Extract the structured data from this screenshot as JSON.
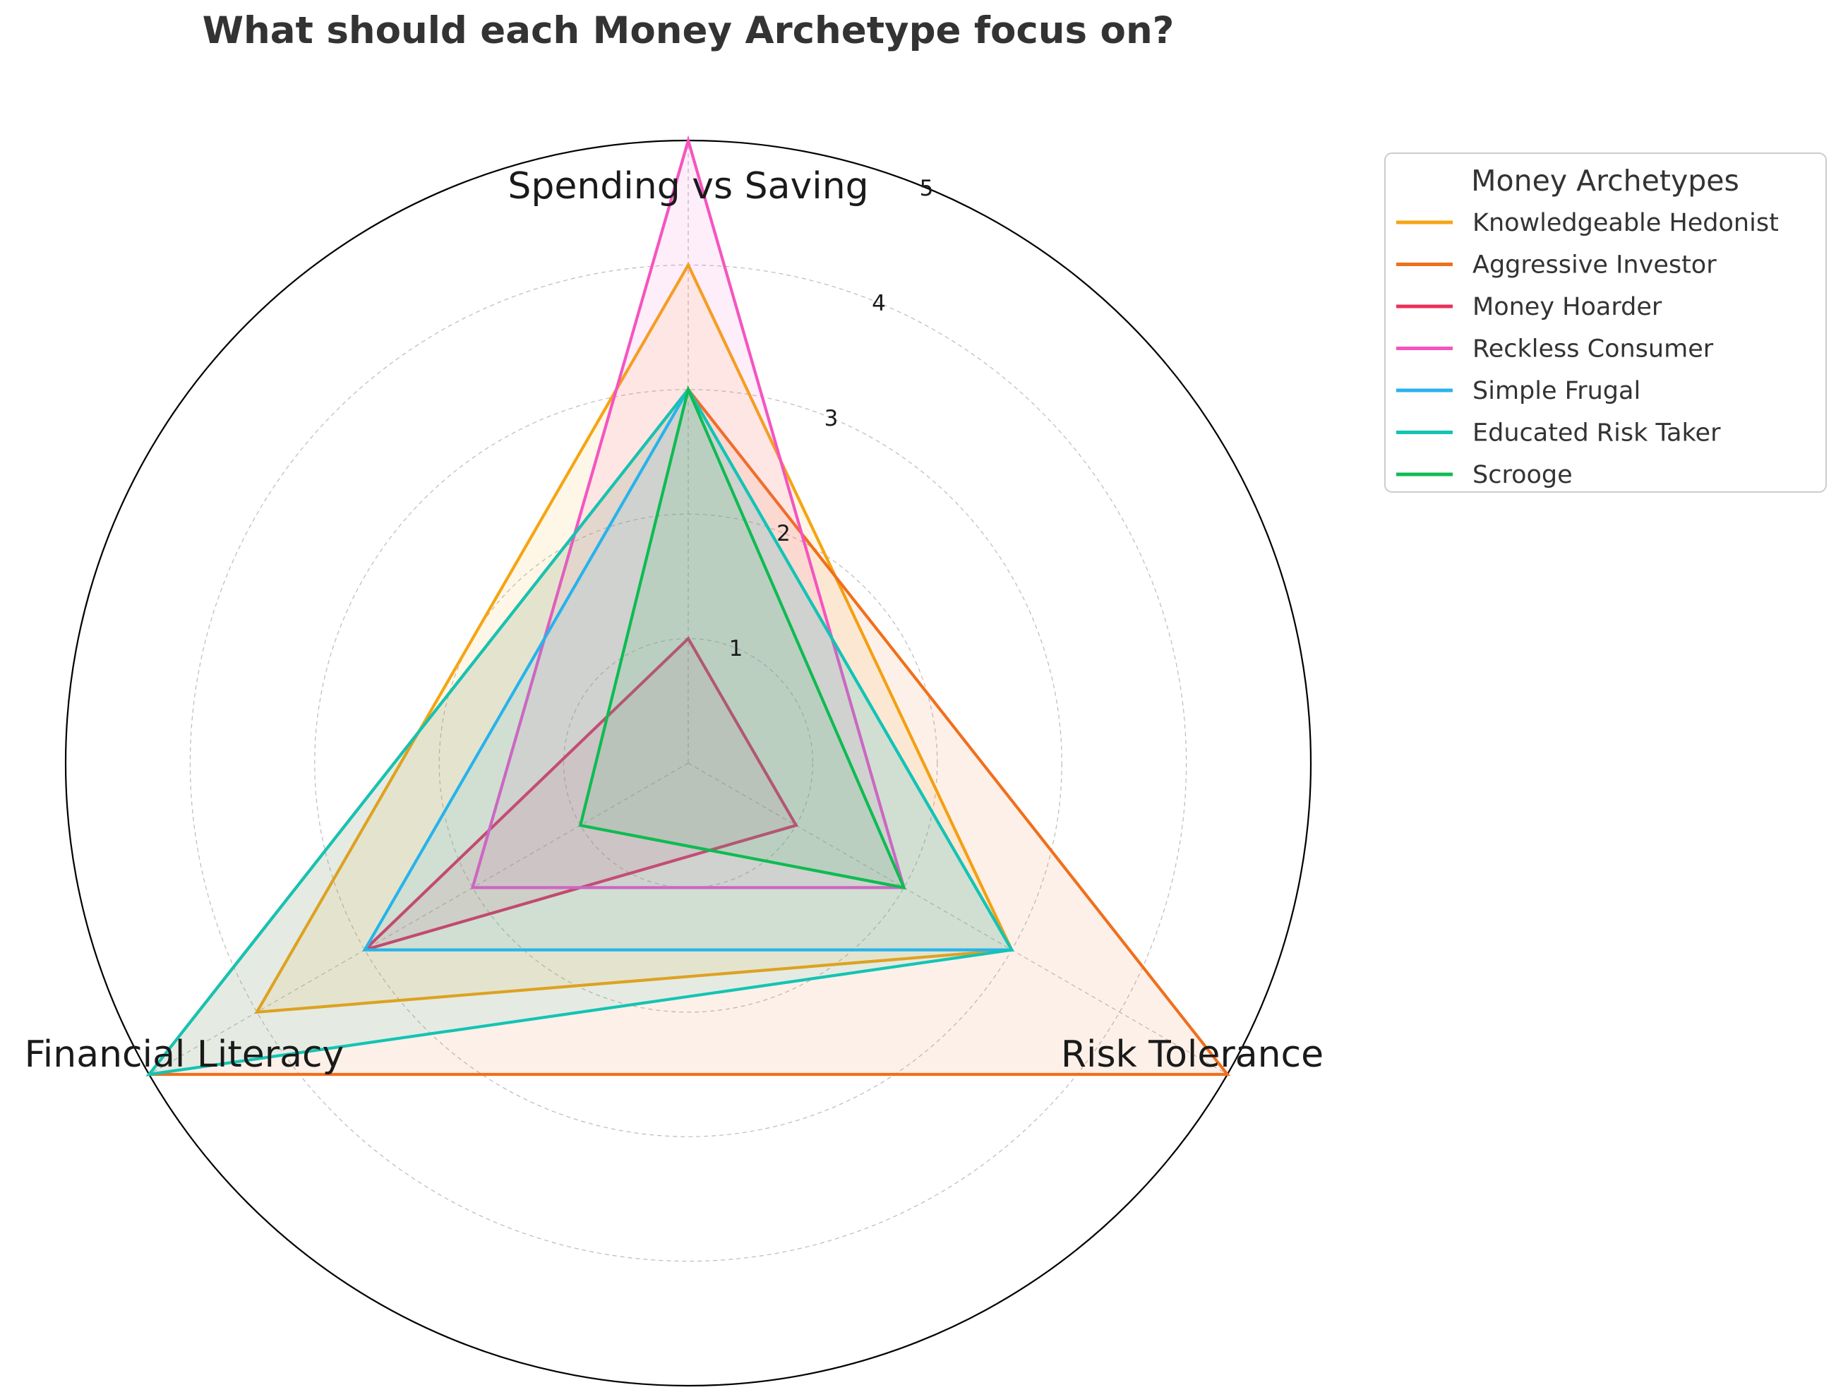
{
  "chart_data": {
    "type": "radar",
    "title": "What should each Money Archetype focus on?",
    "axes": [
      "Spending vs Saving",
      "Risk Tolerance",
      "Financial Literacy"
    ],
    "rlim": [
      0,
      5
    ],
    "rticks": [
      1,
      2,
      3,
      4,
      5
    ],
    "rtick_labels": [
      "1",
      "2",
      "3",
      "4",
      "5"
    ],
    "grid": true,
    "legend": {
      "title": "Money Archetypes",
      "placement": "upper-right-outside"
    },
    "series": [
      {
        "name": "Knowledgeable Hedonist",
        "color": "#f5a511",
        "values": [
          4,
          3,
          4
        ]
      },
      {
        "name": "Aggressive Investor",
        "color": "#f06f1c",
        "values": [
          3,
          5,
          5
        ]
      },
      {
        "name": "Money Hoarder",
        "color": "#ea3059",
        "values": [
          1,
          1,
          3
        ]
      },
      {
        "name": "Reckless Consumer",
        "color": "#f554c0",
        "values": [
          5,
          2,
          2
        ]
      },
      {
        "name": "Simple Frugal",
        "color": "#2ab2f2",
        "values": [
          3,
          3,
          3
        ]
      },
      {
        "name": "Educated Risk Taker",
        "color": "#13c4b4",
        "values": [
          3,
          3,
          5
        ]
      },
      {
        "name": "Scrooge",
        "color": "#0fbb52",
        "values": [
          3,
          2,
          1
        ]
      }
    ]
  }
}
